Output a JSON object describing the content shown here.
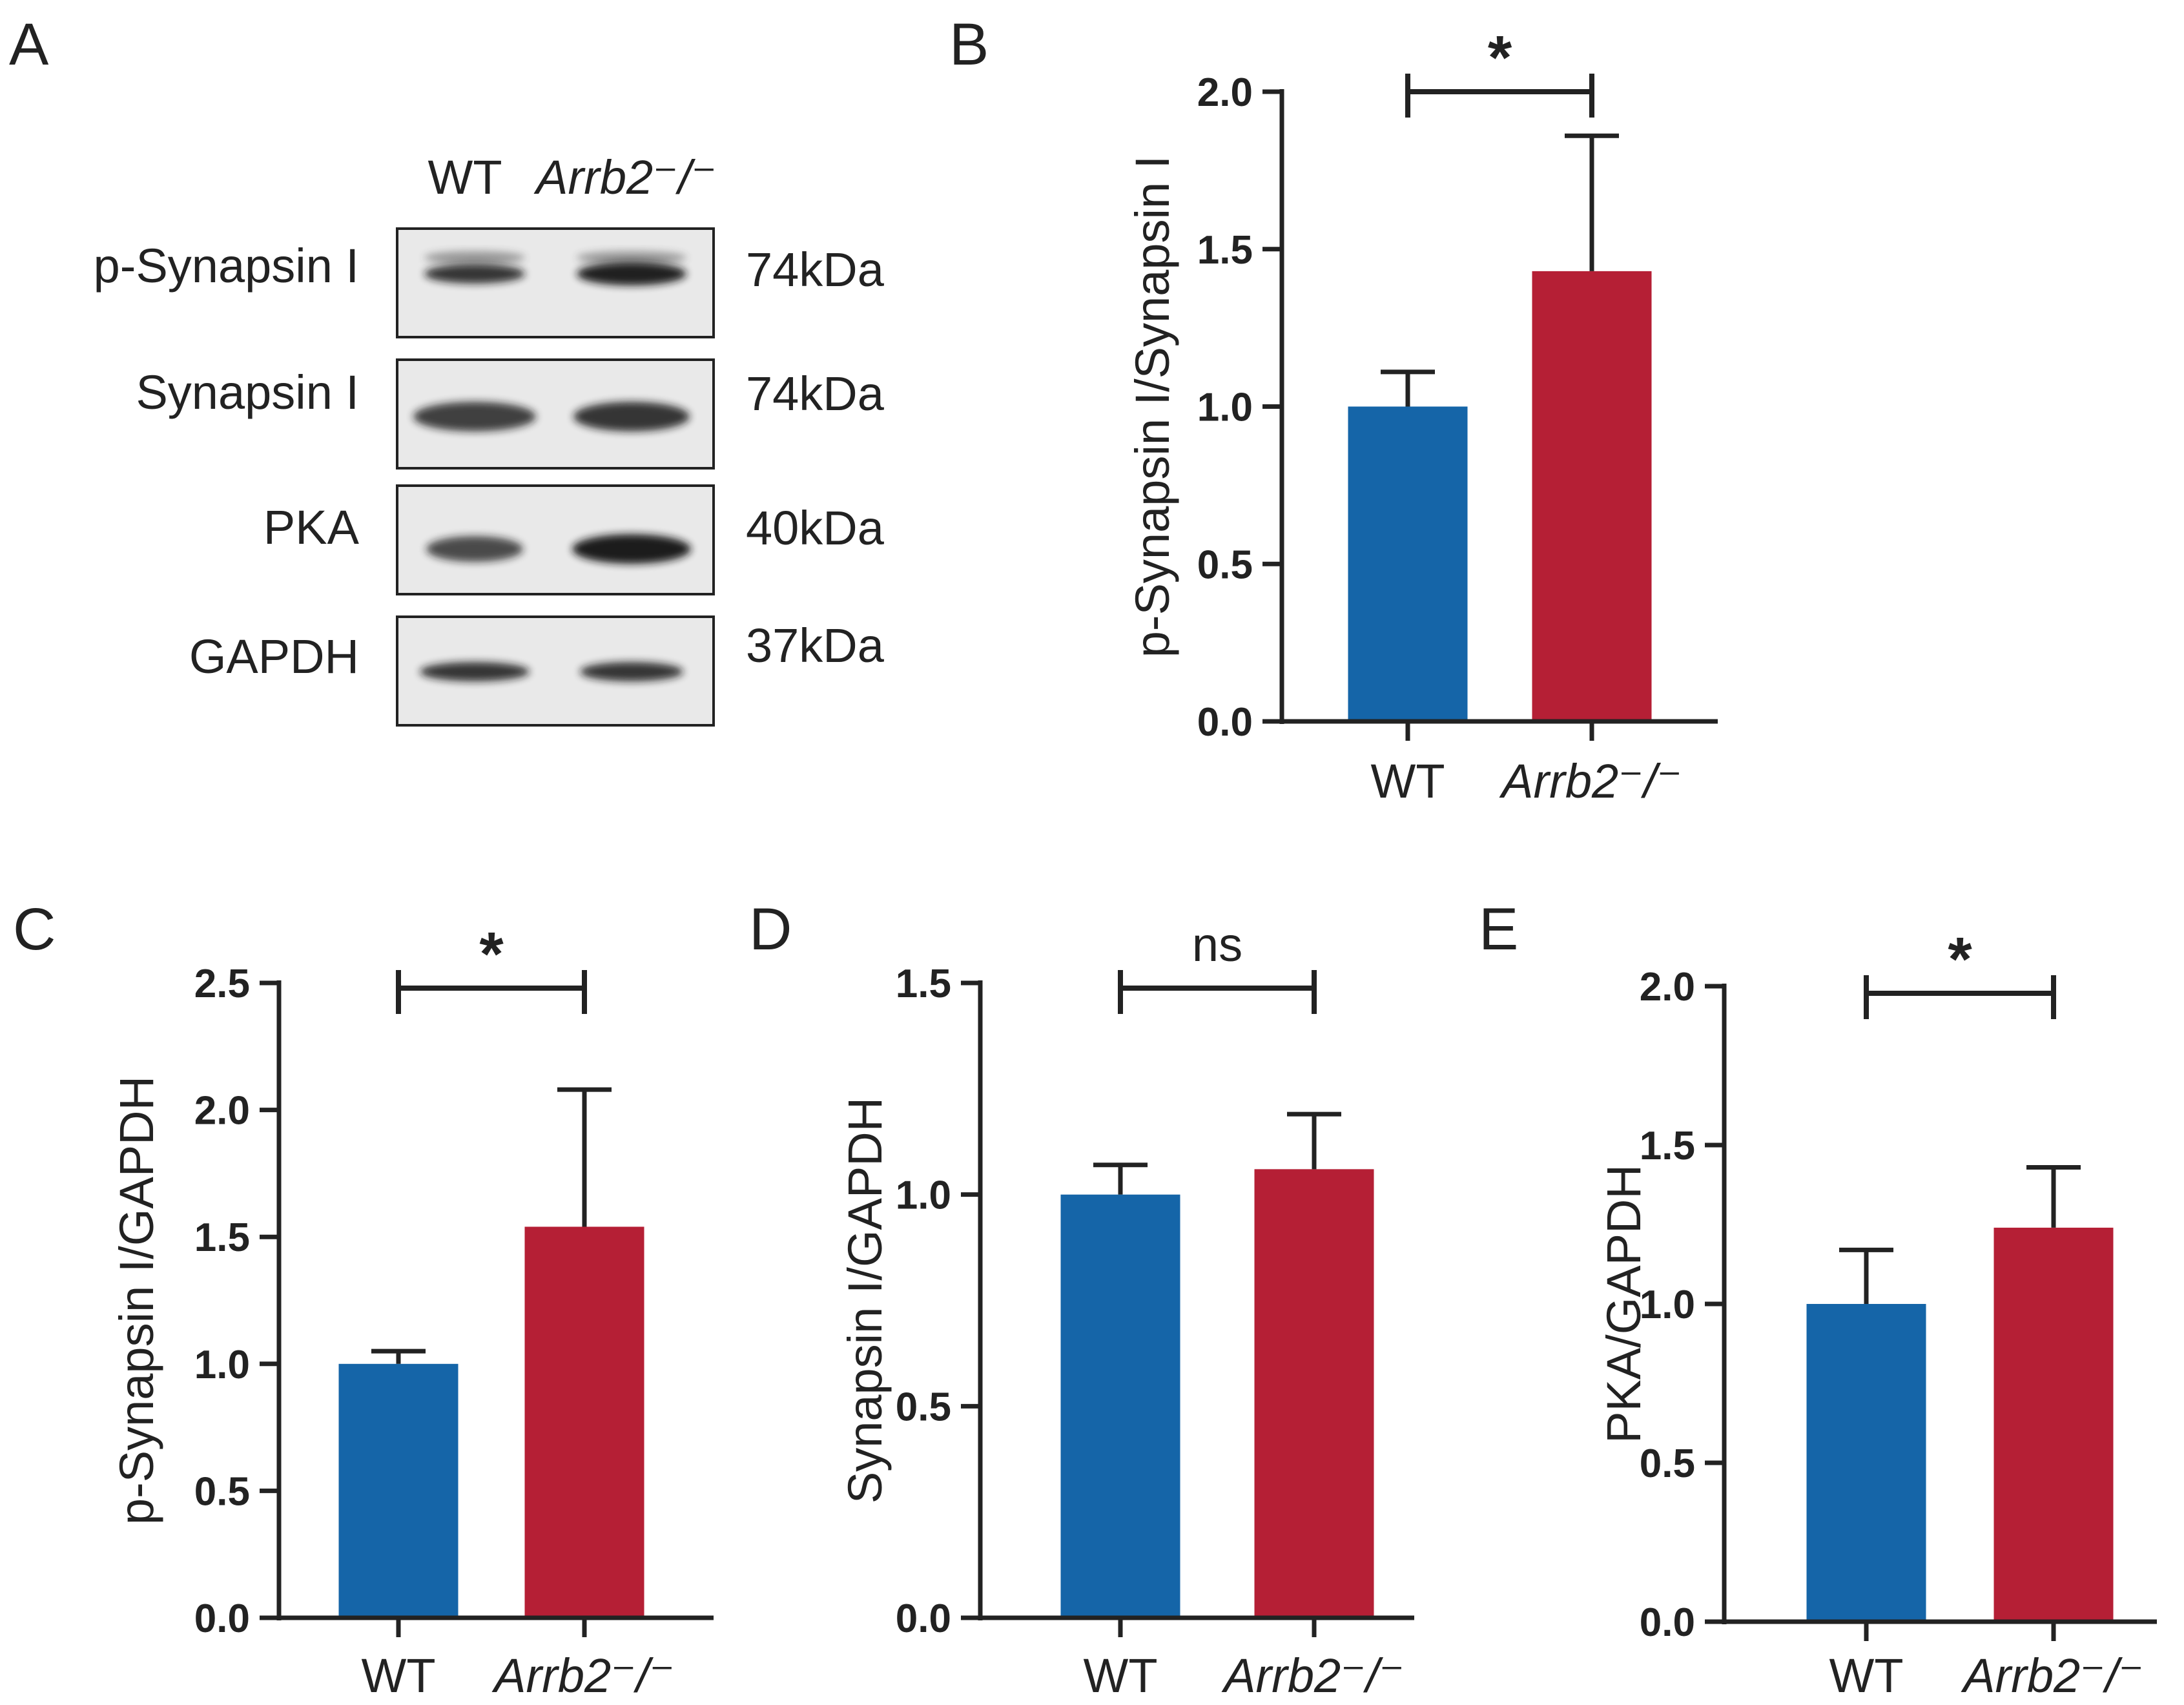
{
  "colors": {
    "wt": "#1565a8",
    "ko": "#b51f35",
    "axis": "#222222"
  },
  "western_blot": {
    "panel_letter": "A",
    "lane_labels": [
      "WT",
      "Arrb2⁻/⁻"
    ],
    "rows": [
      {
        "protein": "p-Synapsin I",
        "mw": "74kDa"
      },
      {
        "protein": "Synapsin I",
        "mw": "74kDa"
      },
      {
        "protein": "PKA",
        "mw": "40kDa"
      },
      {
        "protein": "GAPDH",
        "mw": "37kDa"
      }
    ]
  },
  "chart_data": [
    {
      "panel": "B",
      "type": "bar",
      "categories": [
        "WT",
        "Arrb2⁻/⁻"
      ],
      "values": [
        1.0,
        1.43
      ],
      "errors": [
        0.11,
        0.43
      ],
      "ylabel": "p-Synapsin I/Synapsin I",
      "ylim": [
        0,
        2.0
      ],
      "yticks": [
        "0.0",
        "0.5",
        "1.0",
        "1.5",
        "2.0"
      ],
      "significance": "*"
    },
    {
      "panel": "C",
      "type": "bar",
      "categories": [
        "WT",
        "Arrb2⁻/⁻"
      ],
      "values": [
        1.0,
        1.54
      ],
      "errors": [
        0.05,
        0.54
      ],
      "ylabel": "p-Synapsin I/GAPDH",
      "ylim": [
        0,
        2.5
      ],
      "yticks": [
        "0.0",
        "0.5",
        "1.0",
        "1.5",
        "2.0",
        "2.5"
      ],
      "significance": "*"
    },
    {
      "panel": "D",
      "type": "bar",
      "categories": [
        "WT",
        "Arrb2⁻/⁻"
      ],
      "values": [
        1.0,
        1.06
      ],
      "errors": [
        0.07,
        0.13
      ],
      "ylabel": "Synapsin I/GAPDH",
      "ylim": [
        0,
        1.5
      ],
      "yticks": [
        "0.0",
        "0.5",
        "1.0",
        "1.5"
      ],
      "significance": "ns"
    },
    {
      "panel": "E",
      "type": "bar",
      "categories": [
        "WT",
        "Arrb2⁻/⁻"
      ],
      "values": [
        1.0,
        1.24
      ],
      "errors": [
        0.17,
        0.19
      ],
      "ylabel": "PKA/GAPDH",
      "ylim": [
        0,
        2.0
      ],
      "yticks": [
        "0.0",
        "0.5",
        "1.0",
        "1.5",
        "2.0"
      ],
      "significance": "*"
    }
  ]
}
